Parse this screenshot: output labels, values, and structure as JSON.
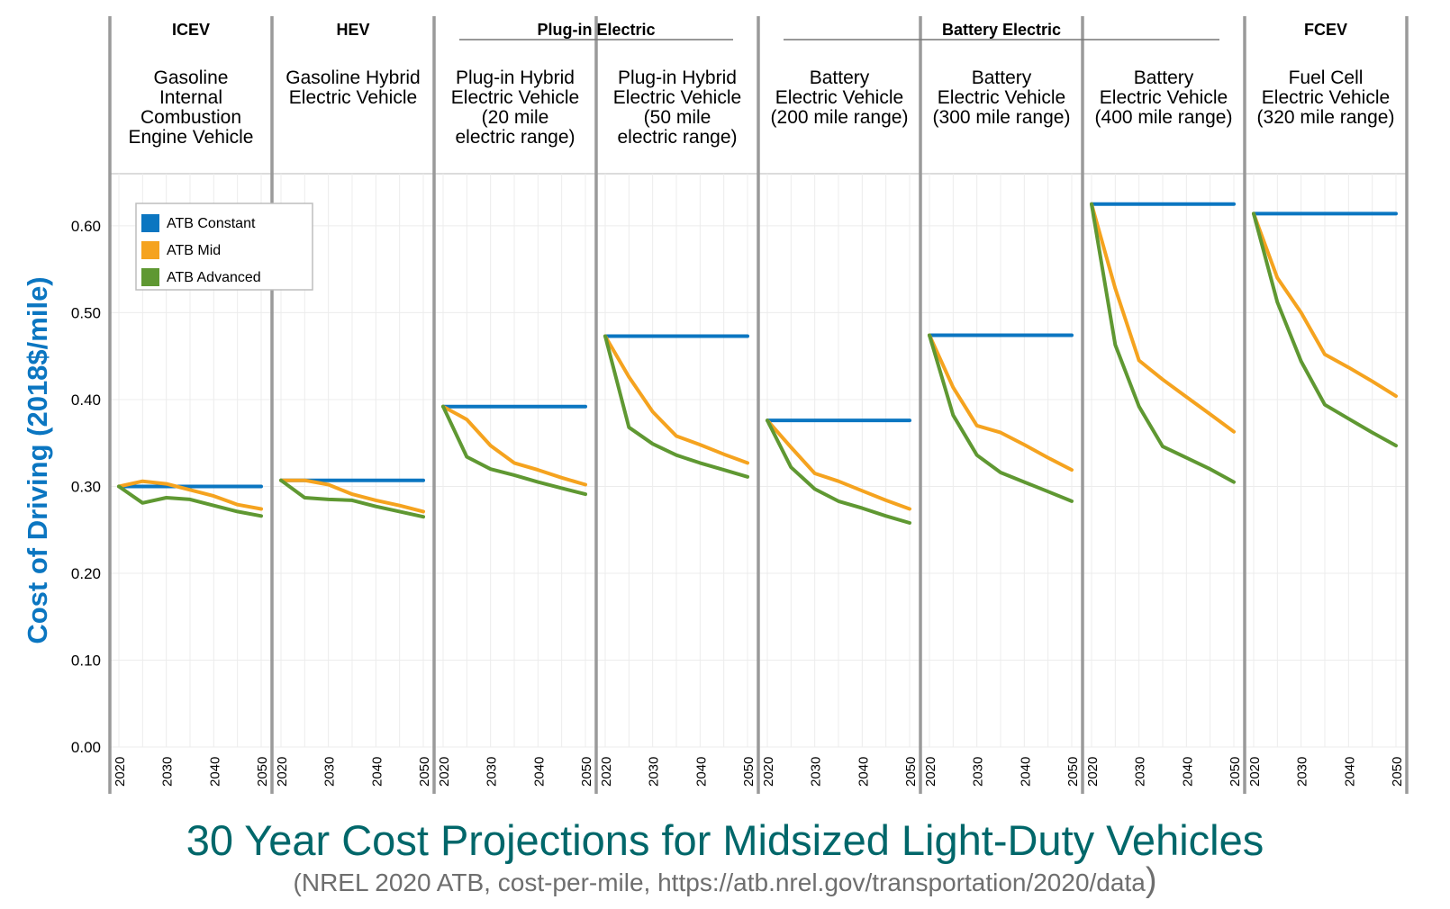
{
  "chart_data": {
    "type": "line",
    "title": "30 Year Cost Projections for Midsized Light-Duty Vehicles",
    "subtitle": "(NREL 2020 ATB, cost-per-mile, https://atb.nrel.gov/transportation/2020/data",
    "subtitle_close": ")",
    "ylabel": "Cost of Driving (2018$/mile)",
    "ylim": [
      0,
      0.66
    ],
    "yticks": [
      "0.00",
      "0.10",
      "0.20",
      "0.30",
      "0.40",
      "0.50",
      "0.60"
    ],
    "xticks": [
      "2020",
      "2030",
      "2040",
      "2050"
    ],
    "grid": true,
    "legend_position": "top-left",
    "legend": [
      {
        "name": "ATB Constant",
        "color": "#0b76c1"
      },
      {
        "name": "ATB Mid",
        "color": "#f5a31f"
      },
      {
        "name": "ATB Advanced",
        "color": "#5f9832"
      }
    ],
    "groups": [
      {
        "label": "ICEV",
        "span": [
          0,
          0
        ]
      },
      {
        "label": "HEV",
        "span": [
          1,
          1
        ]
      },
      {
        "label": "Plug-in Electric",
        "span": [
          2,
          3
        ]
      },
      {
        "label": "Battery Electric",
        "span": [
          4,
          6
        ]
      },
      {
        "label": "FCEV",
        "span": [
          7,
          7
        ]
      }
    ],
    "x": [
      2020,
      2025,
      2030,
      2035,
      2040,
      2045,
      2050
    ],
    "panels": [
      {
        "label": [
          "Gasoline",
          "Internal",
          "Combustion",
          "Engine Vehicle"
        ],
        "series": [
          {
            "name": "ATB Constant",
            "values": [
              0.3,
              0.3,
              0.3,
              0.3,
              0.3,
              0.3,
              0.3
            ]
          },
          {
            "name": "ATB Mid",
            "values": [
              0.3,
              0.306,
              0.303,
              0.296,
              0.289,
              0.279,
              0.274
            ]
          },
          {
            "name": "ATB Advanced",
            "values": [
              0.3,
              0.281,
              0.287,
              0.285,
              0.278,
              0.271,
              0.266
            ]
          }
        ]
      },
      {
        "label": [
          "Gasoline Hybrid",
          "Electric Vehicle"
        ],
        "series": [
          {
            "name": "ATB Constant",
            "values": [
              0.307,
              0.307,
              0.307,
              0.307,
              0.307,
              0.307,
              0.307
            ]
          },
          {
            "name": "ATB Mid",
            "values": [
              0.307,
              0.307,
              0.302,
              0.291,
              0.284,
              0.278,
              0.271
            ]
          },
          {
            "name": "ATB Advanced",
            "values": [
              0.307,
              0.287,
              0.285,
              0.284,
              0.277,
              0.271,
              0.265
            ]
          }
        ]
      },
      {
        "label": [
          "Plug-in Hybrid",
          "Electric Vehicle",
          "(20 mile",
          "electric range)"
        ],
        "series": [
          {
            "name": "ATB Constant",
            "values": [
              0.392,
              0.392,
              0.392,
              0.392,
              0.392,
              0.392,
              0.392
            ]
          },
          {
            "name": "ATB Mid",
            "values": [
              0.392,
              0.377,
              0.347,
              0.327,
              0.319,
              0.31,
              0.302
            ]
          },
          {
            "name": "ATB Advanced",
            "values": [
              0.392,
              0.334,
              0.32,
              0.313,
              0.305,
              0.298,
              0.291
            ]
          }
        ]
      },
      {
        "label": [
          "Plug-in Hybrid",
          "Electric Vehicle",
          "(50 mile",
          "electric range)"
        ],
        "series": [
          {
            "name": "ATB Constant",
            "values": [
              0.473,
              0.473,
              0.473,
              0.473,
              0.473,
              0.473,
              0.473
            ]
          },
          {
            "name": "ATB Mid",
            "values": [
              0.473,
              0.426,
              0.386,
              0.358,
              0.348,
              0.337,
              0.327
            ]
          },
          {
            "name": "ATB Advanced",
            "values": [
              0.473,
              0.368,
              0.349,
              0.336,
              0.327,
              0.319,
              0.311
            ]
          }
        ]
      },
      {
        "label": [
          "Battery",
          "Electric Vehicle",
          "(200 mile range)"
        ],
        "series": [
          {
            "name": "ATB Constant",
            "values": [
              0.376,
              0.376,
              0.376,
              0.376,
              0.376,
              0.376,
              0.376
            ]
          },
          {
            "name": "ATB Mid",
            "values": [
              0.376,
              0.345,
              0.315,
              0.306,
              0.295,
              0.284,
              0.274
            ]
          },
          {
            "name": "ATB Advanced",
            "values": [
              0.376,
              0.322,
              0.297,
              0.283,
              0.275,
              0.266,
              0.258
            ]
          }
        ]
      },
      {
        "label": [
          "Battery",
          "Electric Vehicle",
          "(300 mile range)"
        ],
        "series": [
          {
            "name": "ATB Constant",
            "values": [
              0.474,
              0.474,
              0.474,
              0.474,
              0.474,
              0.474,
              0.474
            ]
          },
          {
            "name": "ATB Mid",
            "values": [
              0.474,
              0.414,
              0.37,
              0.362,
              0.348,
              0.333,
              0.319
            ]
          },
          {
            "name": "ATB Advanced",
            "values": [
              0.474,
              0.382,
              0.336,
              0.316,
              0.305,
              0.294,
              0.283
            ]
          }
        ]
      },
      {
        "label": [
          "Battery",
          "Electric Vehicle",
          "(400 mile range)"
        ],
        "series": [
          {
            "name": "ATB Constant",
            "values": [
              0.625,
              0.625,
              0.625,
              0.625,
              0.625,
              0.625,
              0.625
            ]
          },
          {
            "name": "ATB Mid",
            "values": [
              0.625,
              0.528,
              0.445,
              0.423,
              0.403,
              0.383,
              0.363
            ]
          },
          {
            "name": "ATB Advanced",
            "values": [
              0.625,
              0.463,
              0.392,
              0.346,
              0.333,
              0.32,
              0.305
            ]
          }
        ]
      },
      {
        "label": [
          "Fuel Cell",
          "Electric Vehicle",
          "(320 mile range)"
        ],
        "series": [
          {
            "name": "ATB Constant",
            "values": [
              0.614,
              0.614,
              0.614,
              0.614,
              0.614,
              0.614,
              0.614
            ]
          },
          {
            "name": "ATB Mid",
            "values": [
              0.614,
              0.54,
              0.5,
              0.452,
              0.437,
              0.421,
              0.404
            ]
          },
          {
            "name": "ATB Advanced",
            "values": [
              0.614,
              0.512,
              0.444,
              0.394,
              0.378,
              0.362,
              0.347
            ]
          }
        ]
      }
    ]
  }
}
